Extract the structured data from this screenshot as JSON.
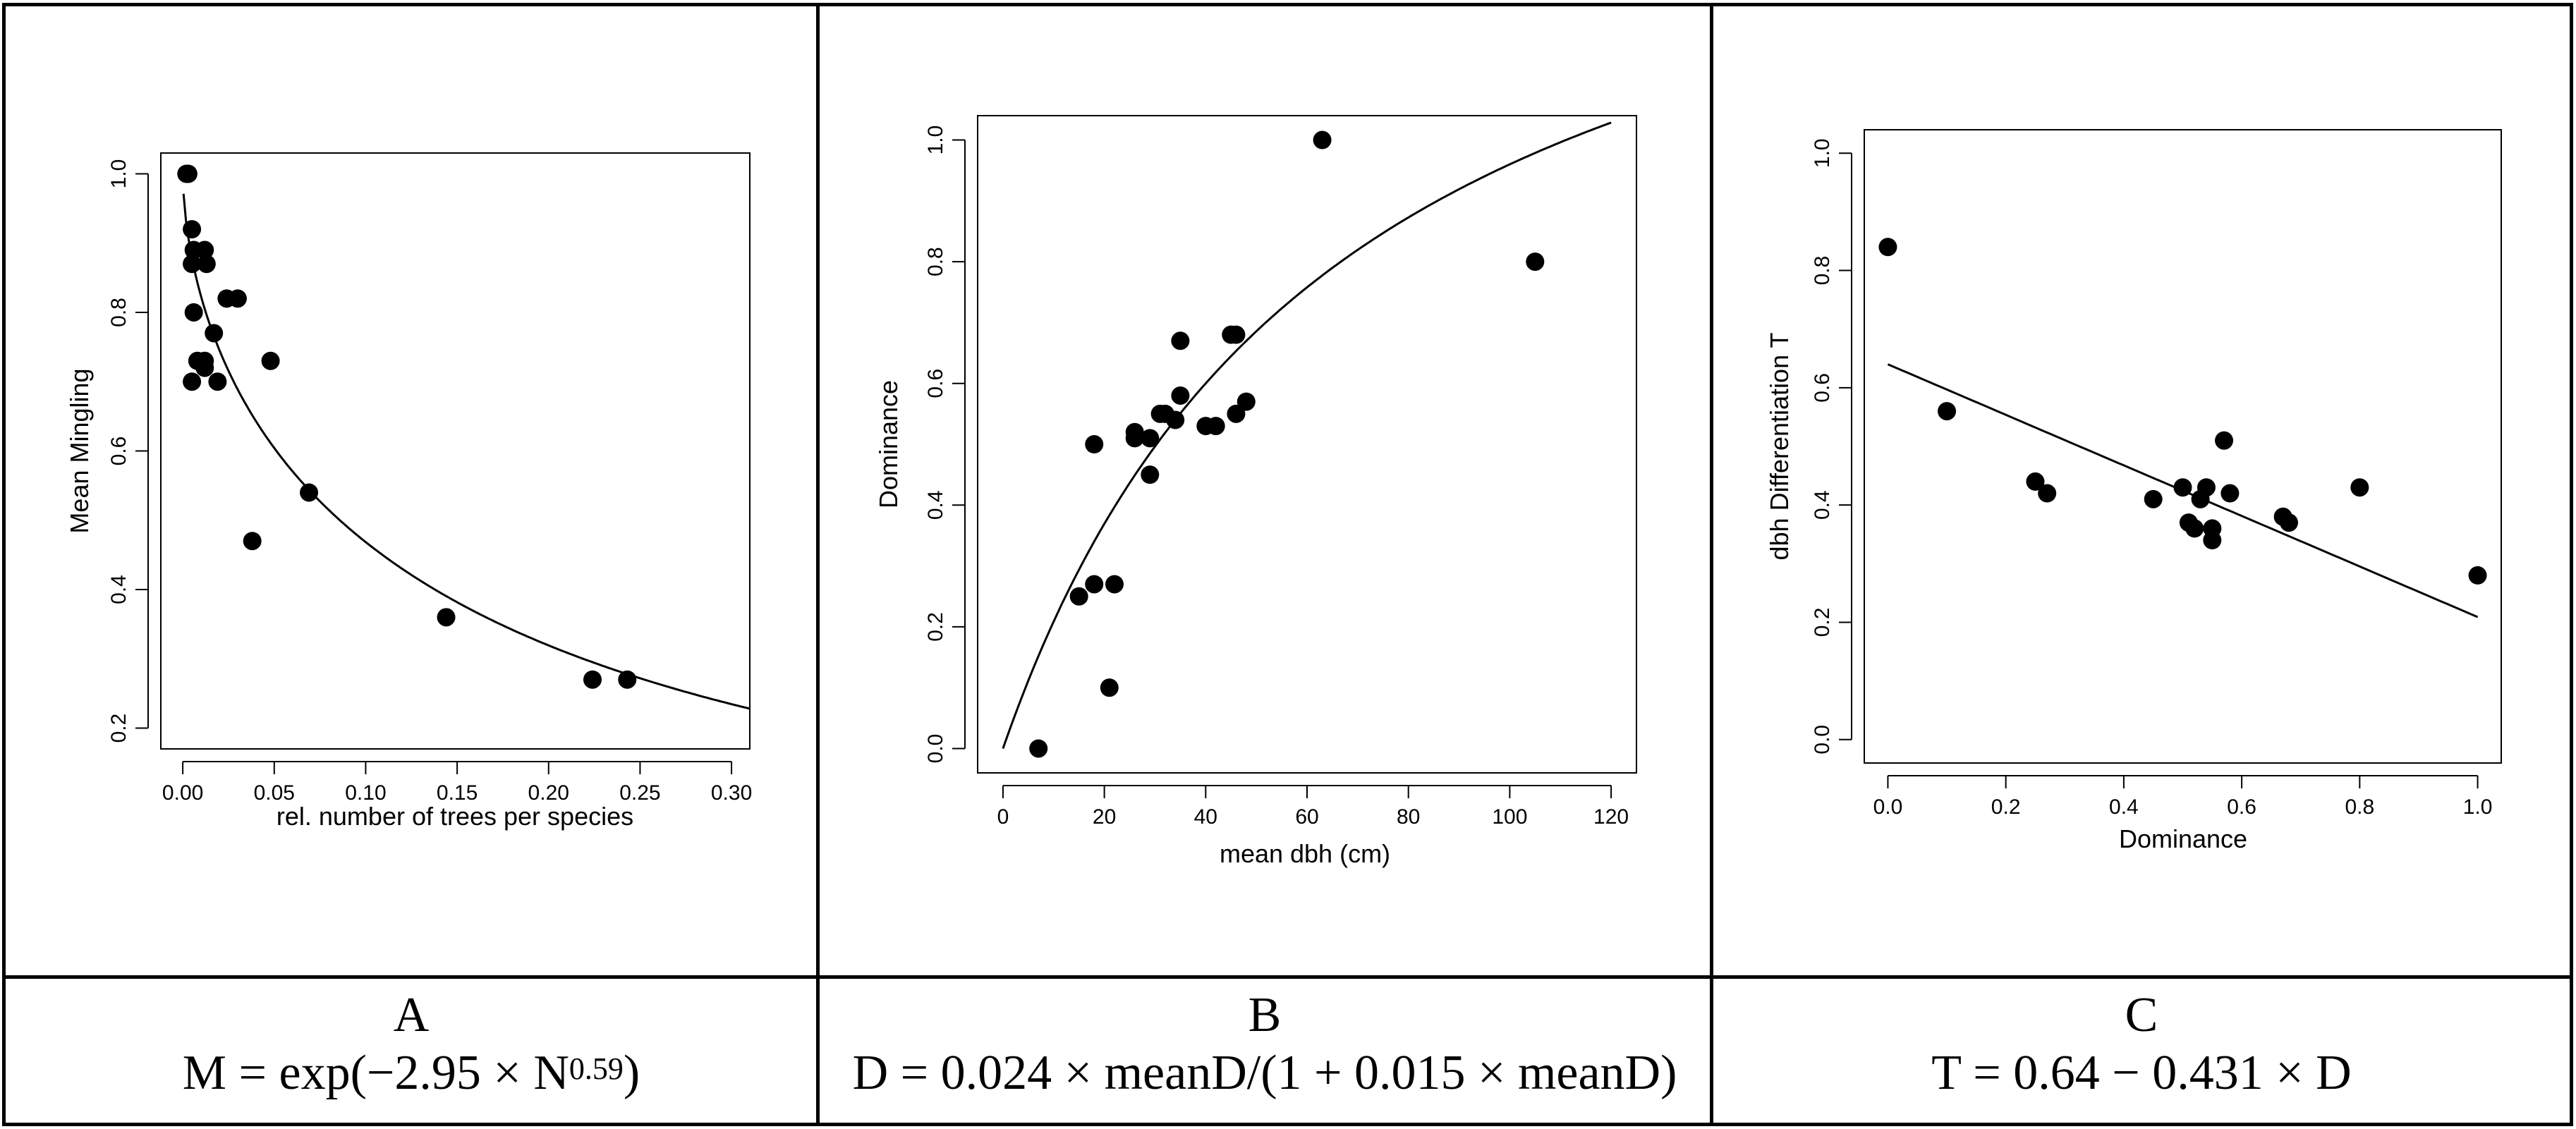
{
  "chart_data": [
    {
      "panel": "A",
      "type": "scatter",
      "xlabel": "rel. number of trees per species",
      "ylabel": "Mean Mingling",
      "xlim": [
        -0.012,
        0.31
      ],
      "ylim": [
        0.17,
        1.03
      ],
      "xticks": [
        0.0,
        0.05,
        0.1,
        0.15,
        0.2,
        0.25,
        0.3
      ],
      "xtick_labels": [
        "0.00",
        "0.05",
        "0.10",
        "0.15",
        "0.20",
        "0.25",
        "0.30"
      ],
      "yticks": [
        0.2,
        0.4,
        0.6,
        0.8,
        1.0
      ],
      "ytick_labels": [
        "0.2",
        "0.4",
        "0.6",
        "0.8",
        "1.0"
      ],
      "points": [
        [
          0.002,
          1.0
        ],
        [
          0.003,
          1.0
        ],
        [
          0.005,
          0.92
        ],
        [
          0.006,
          0.89
        ],
        [
          0.012,
          0.89
        ],
        [
          0.005,
          0.87
        ],
        [
          0.013,
          0.87
        ],
        [
          0.006,
          0.8
        ],
        [
          0.024,
          0.82
        ],
        [
          0.03,
          0.82
        ],
        [
          0.017,
          0.77
        ],
        [
          0.008,
          0.73
        ],
        [
          0.012,
          0.72
        ],
        [
          0.012,
          0.73
        ],
        [
          0.048,
          0.73
        ],
        [
          0.005,
          0.7
        ],
        [
          0.019,
          0.7
        ],
        [
          0.069,
          0.54
        ],
        [
          0.038,
          0.47
        ],
        [
          0.144,
          0.36
        ],
        [
          0.224,
          0.27
        ],
        [
          0.243,
          0.27
        ]
      ],
      "fit": {
        "model": "power-exp",
        "a": 2.95,
        "b": 0.59,
        "x_range": [
          0.0004,
          0.31
        ]
      }
    },
    {
      "panel": "B",
      "type": "scatter",
      "xlabel": "mean dbh (cm)",
      "ylabel": "Dominance",
      "xlim": [
        -5,
        125
      ],
      "ylim": [
        -0.04,
        1.04
      ],
      "xticks": [
        0,
        20,
        40,
        60,
        80,
        100,
        120
      ],
      "xtick_labels": [
        "0",
        "20",
        "40",
        "60",
        "80",
        "100",
        "120"
      ],
      "yticks": [
        0.0,
        0.2,
        0.4,
        0.6,
        0.8,
        1.0
      ],
      "ytick_labels": [
        "0.0",
        "0.2",
        "0.4",
        "0.6",
        "0.8",
        "1.0"
      ],
      "points": [
        [
          7,
          0.0
        ],
        [
          15,
          0.25
        ],
        [
          18,
          0.27
        ],
        [
          22,
          0.27
        ],
        [
          21,
          0.1
        ],
        [
          18,
          0.5
        ],
        [
          26,
          0.52
        ],
        [
          26,
          0.51
        ],
        [
          29,
          0.51
        ],
        [
          29,
          0.45
        ],
        [
          31,
          0.55
        ],
        [
          32,
          0.55
        ],
        [
          34,
          0.54
        ],
        [
          35,
          0.58
        ],
        [
          35,
          0.67
        ],
        [
          40,
          0.53
        ],
        [
          42,
          0.53
        ],
        [
          45,
          0.68
        ],
        [
          46,
          0.68
        ],
        [
          46,
          0.55
        ],
        [
          48,
          0.57
        ],
        [
          63,
          1.0
        ],
        [
          105,
          0.8
        ]
      ],
      "fit": {
        "model": "saturating",
        "a": 0.024,
        "b": 0.015,
        "x_range": [
          0,
          120
        ]
      }
    },
    {
      "panel": "C",
      "type": "scatter",
      "xlabel": "Dominance",
      "ylabel": "dbh Differentiation T",
      "xlim": [
        -0.04,
        1.04
      ],
      "ylim": [
        -0.04,
        1.04
      ],
      "xticks": [
        0.0,
        0.2,
        0.4,
        0.6,
        0.8,
        1.0
      ],
      "xtick_labels": [
        "0.0",
        "0.2",
        "0.4",
        "0.6",
        "0.8",
        "1.0"
      ],
      "yticks": [
        0.0,
        0.2,
        0.4,
        0.6,
        0.8,
        1.0
      ],
      "ytick_labels": [
        "0.0",
        "0.2",
        "0.4",
        "0.6",
        "0.8",
        "1.0"
      ],
      "points": [
        [
          0.0,
          0.84
        ],
        [
          0.1,
          0.56
        ],
        [
          0.25,
          0.44
        ],
        [
          0.27,
          0.42
        ],
        [
          0.45,
          0.41
        ],
        [
          0.5,
          0.43
        ],
        [
          0.51,
          0.37
        ],
        [
          0.52,
          0.36
        ],
        [
          0.53,
          0.41
        ],
        [
          0.54,
          0.43
        ],
        [
          0.55,
          0.36
        ],
        [
          0.55,
          0.34
        ],
        [
          0.57,
          0.51
        ],
        [
          0.58,
          0.42
        ],
        [
          0.67,
          0.38
        ],
        [
          0.68,
          0.37
        ],
        [
          0.8,
          0.43
        ],
        [
          1.0,
          0.28
        ]
      ],
      "fit": {
        "model": "linear",
        "a": 0.64,
        "b": -0.431,
        "x_range": [
          0,
          1
        ]
      }
    }
  ],
  "captions": [
    {
      "letter": "A",
      "formula_main": "M = exp(−2.95 × N",
      "formula_sup": "0.59",
      "formula_end": ")"
    },
    {
      "letter": "B",
      "formula_main": "D = 0.024 × meanD/(1 + 0.015 × meanD)",
      "formula_sup": "",
      "formula_end": ""
    },
    {
      "letter": "C",
      "formula_main": "T = 0.64 − 0.431 × D",
      "formula_sup": "",
      "formula_end": ""
    }
  ]
}
